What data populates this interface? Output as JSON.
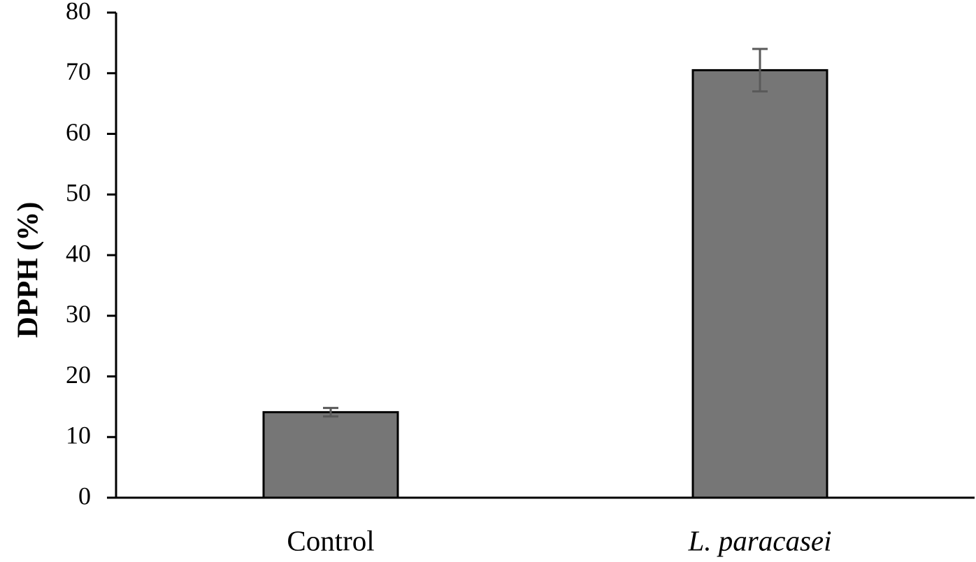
{
  "chart_data": {
    "type": "bar",
    "title": "",
    "xlabel": "",
    "ylabel": "DPPH (%)",
    "ylim": [
      0,
      80
    ],
    "yticks": [
      0,
      10,
      20,
      30,
      40,
      50,
      60,
      70,
      80
    ],
    "categories": [
      "Control",
      "L. paracasei"
    ],
    "category_italic": [
      false,
      true
    ],
    "values": [
      14.1,
      70.5
    ],
    "errors": [
      0.7,
      3.5
    ],
    "bar_color": "#767676",
    "bar_edge_color": "#000000",
    "error_color": "#595959"
  }
}
